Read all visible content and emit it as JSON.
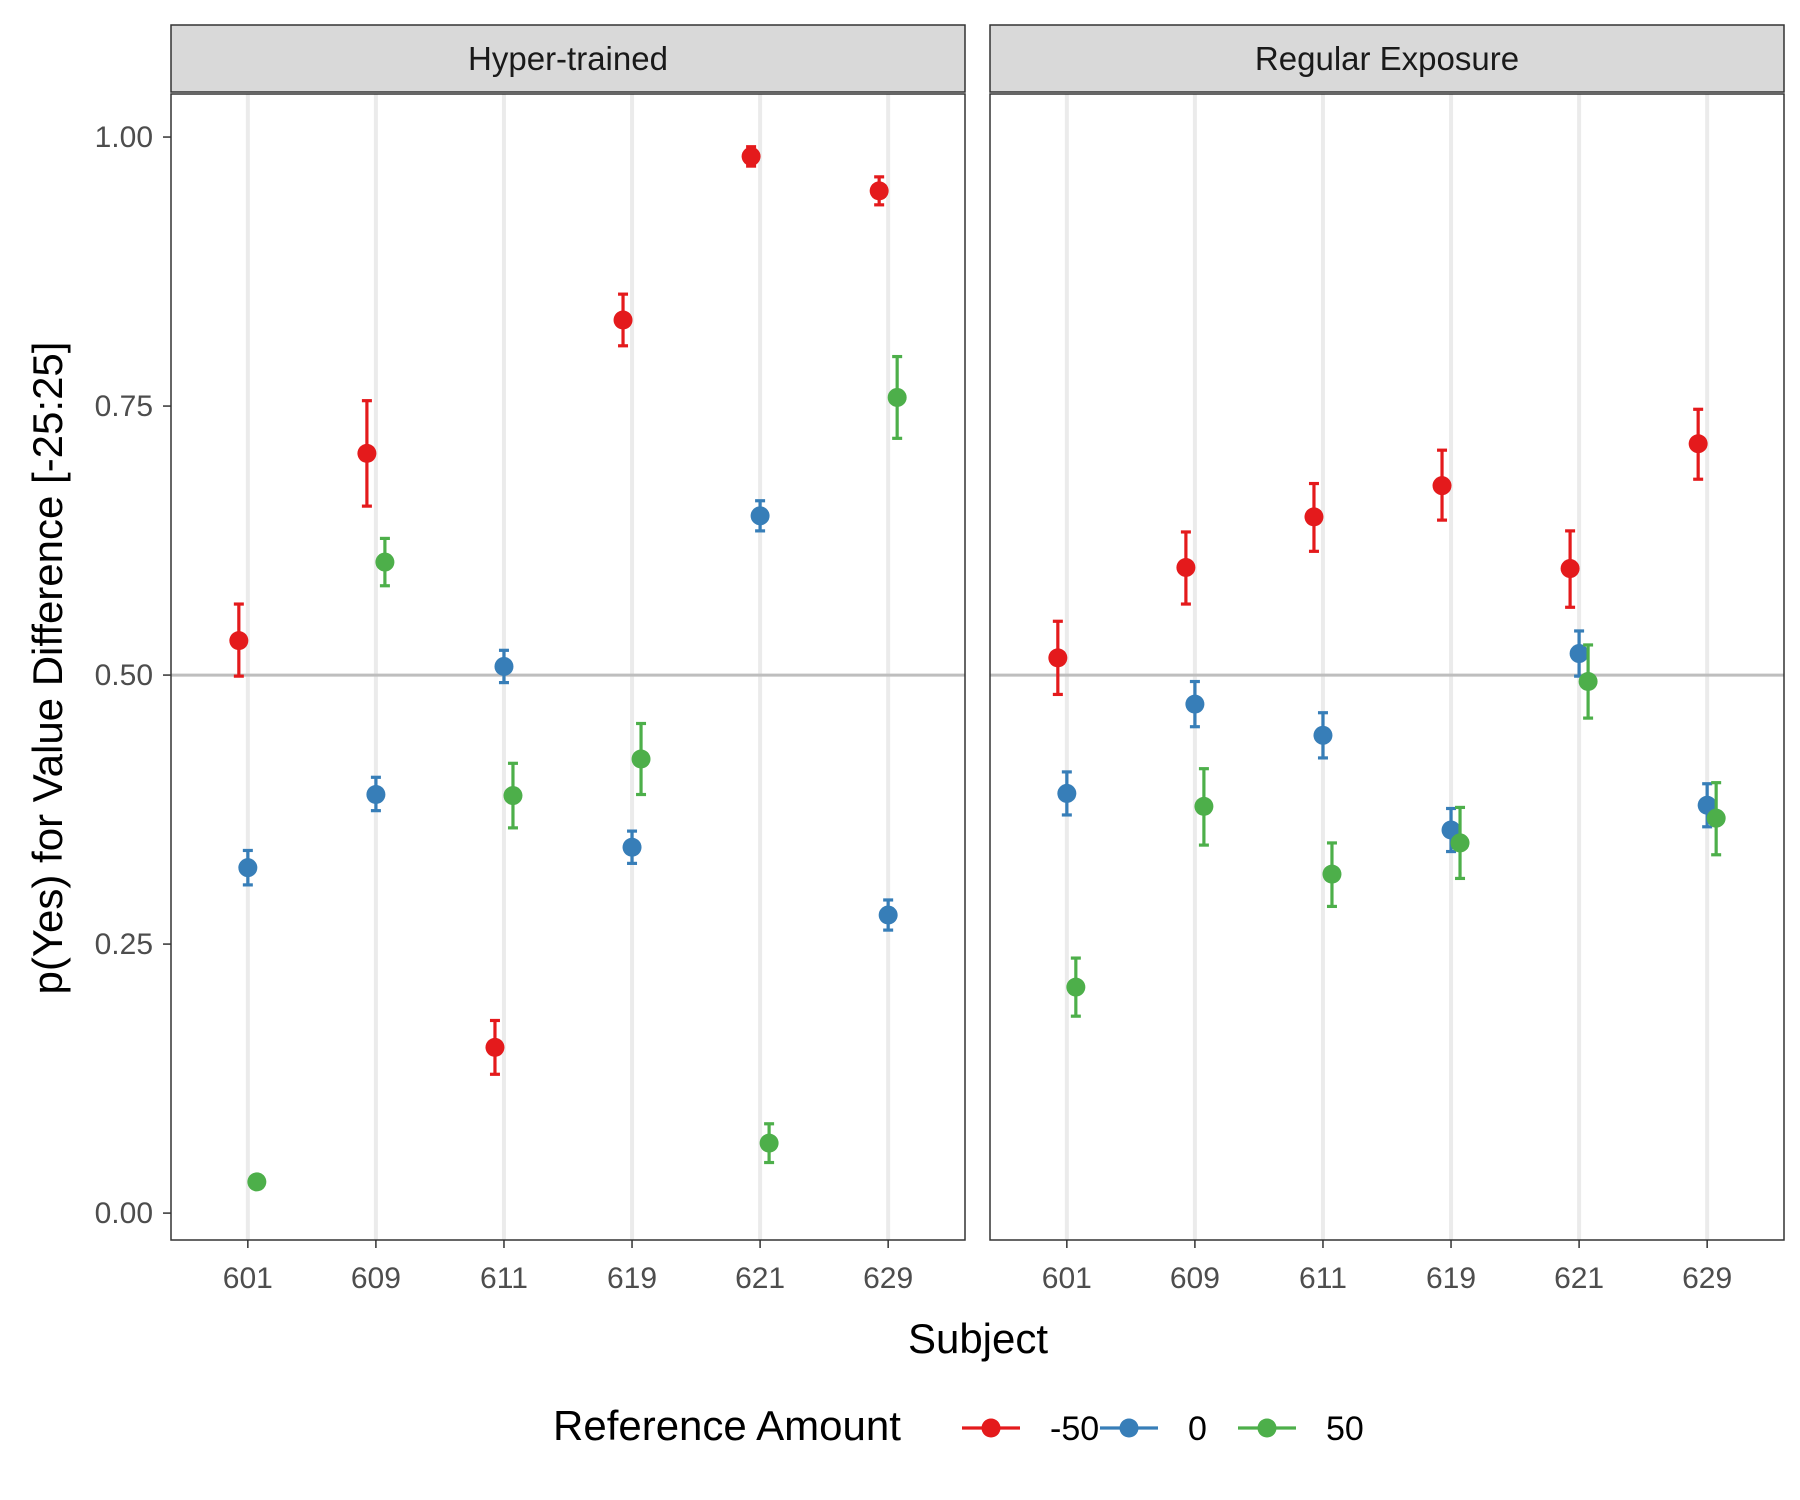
{
  "chart_data": {
    "type": "scatter",
    "subtitle_kind": "pointrange with error bars, faceted",
    "panels": [
      "Hyper-trained",
      "Regular Exposure"
    ],
    "categories": [
      "601",
      "609",
      "611",
      "619",
      "621",
      "629"
    ],
    "xlabel": "Subject",
    "ylabel": "p(Yes) for Value Difference [-25:25]",
    "ylim": [
      -0.025,
      1.04
    ],
    "yticks": [
      0.0,
      0.25,
      0.5,
      0.75,
      1.0
    ],
    "ytick_labels": [
      "0.00",
      "0.25",
      "0.50",
      "0.75",
      "1.00"
    ],
    "reference_line_y": 0.5,
    "grid": "vertical major gridlines only",
    "legend": {
      "title": "Reference Amount",
      "placement": "bottom"
    },
    "series": [
      {
        "name": "-50",
        "color": "#e41a1c",
        "panels": {
          "Hyper-trained": {
            "values": [
              0.532,
              0.706,
              0.154,
              0.83,
              0.982,
              0.95
            ],
            "lower": [
              0.499,
              0.657,
              0.129,
              0.806,
              0.973,
              0.937
            ],
            "upper": [
              0.566,
              0.755,
              0.179,
              0.854,
              0.991,
              0.963
            ]
          },
          "Regular Exposure": {
            "values": [
              0.516,
              0.6,
              0.647,
              0.676,
              0.599,
              0.715
            ],
            "lower": [
              0.482,
              0.566,
              0.615,
              0.644,
              0.563,
              0.682
            ],
            "upper": [
              0.55,
              0.633,
              0.678,
              0.709,
              0.634,
              0.747
            ]
          }
        }
      },
      {
        "name": "0",
        "color": "#377eb8",
        "panels": {
          "Hyper-trained": {
            "values": [
              0.321,
              0.389,
              0.508,
              0.34,
              0.648,
              0.277
            ],
            "lower": [
              0.305,
              0.374,
              0.493,
              0.325,
              0.634,
              0.263
            ],
            "upper": [
              0.337,
              0.405,
              0.523,
              0.355,
              0.662,
              0.291
            ]
          },
          "Regular Exposure": {
            "values": [
              0.39,
              0.473,
              0.444,
              0.356,
              0.52,
              0.379
            ],
            "lower": [
              0.37,
              0.452,
              0.423,
              0.336,
              0.499,
              0.359
            ],
            "upper": [
              0.41,
              0.494,
              0.465,
              0.376,
              0.541,
              0.399
            ]
          }
        }
      },
      {
        "name": "50",
        "color": "#4daf4a",
        "panels": {
          "Hyper-trained": {
            "values": [
              0.029,
              0.605,
              0.388,
              0.422,
              0.065,
              0.758
            ],
            "lower": [
              0.023,
              0.583,
              0.358,
              0.389,
              0.047,
              0.72
            ],
            "upper": [
              0.035,
              0.627,
              0.418,
              0.455,
              0.083,
              0.796
            ]
          },
          "Regular Exposure": {
            "values": [
              0.21,
              0.378,
              0.315,
              0.344,
              0.494,
              0.367
            ],
            "lower": [
              0.183,
              0.342,
              0.285,
              0.311,
              0.46,
              0.333
            ],
            "upper": [
              0.237,
              0.413,
              0.344,
              0.377,
              0.528,
              0.4
            ]
          }
        }
      }
    ]
  }
}
